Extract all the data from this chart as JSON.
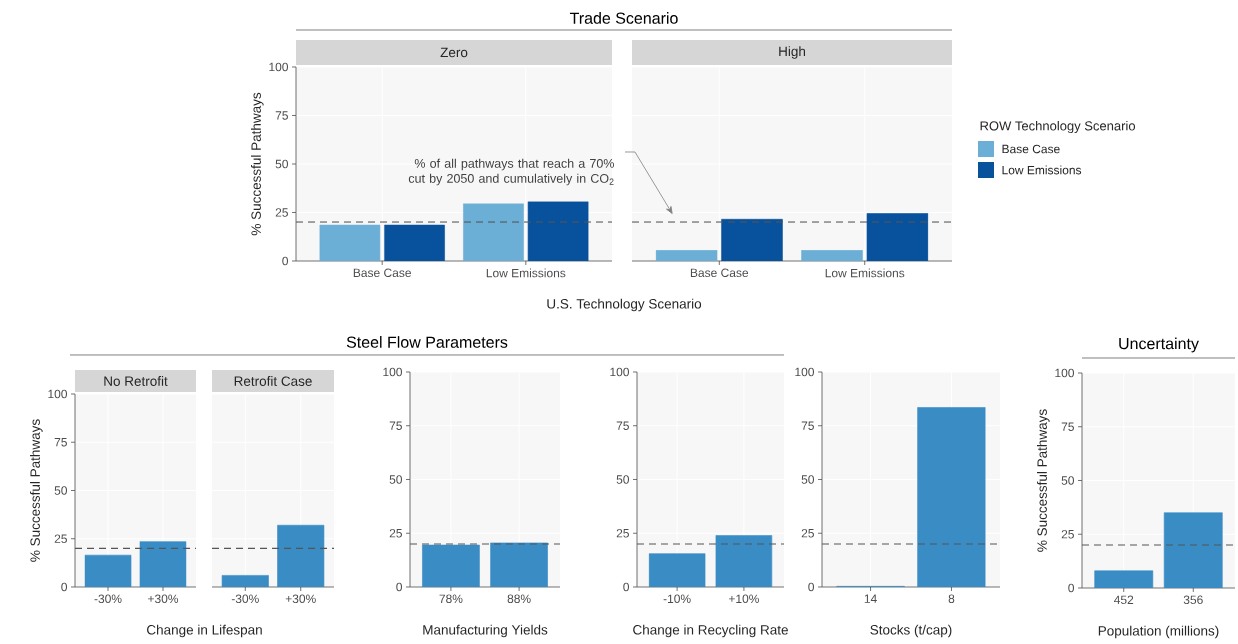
{
  "chart_data": [
    {
      "type": "bar",
      "title": "Zero",
      "annotations": [
        "Trade Scenario"
      ],
      "categories": [
        "Base Case",
        "Low Emissions"
      ],
      "series": [
        {
          "color": "#6baed6",
          "values": [
            18.5,
            29.5
          ]
        },
        {
          "color": "#08519c",
          "values": [
            18.5,
            30.5
          ]
        }
      ],
      "xlabel": "U.S. Technology Scenario",
      "ylabel": "% Successful Pathways",
      "ylim": [
        0,
        100
      ],
      "yticks": [
        0,
        25,
        50,
        75,
        100
      ],
      "grid": true,
      "ref_lines": [
        {
          "axis": "y",
          "value": 20,
          "color": "#555555",
          "line_style": "dashed"
        }
      ]
    },
    {
      "type": "bar",
      "title": "High",
      "categories": [
        "Base Case",
        "Low Emissions"
      ],
      "series": [
        {
          "name": "Base Case",
          "color": "#6baed6",
          "values": [
            5.5,
            5.5
          ]
        },
        {
          "name": "Low Emissions",
          "color": "#08519c",
          "values": [
            21.5,
            24.5
          ]
        }
      ],
      "legend": "right",
      "legend_title": "ROW Technology Scenario",
      "annotations": [
        "% of all pathways that reach a 70% cut by 2050 and cumulatively in CO$_{2}$"
      ],
      "ylim": [
        0,
        100
      ],
      "yticks": [
        0,
        25,
        50,
        75,
        100
      ],
      "tick_labels": "x",
      "grid": true,
      "ref_lines": [
        {
          "axis": "y",
          "value": 20,
          "color": "#555555",
          "line_style": "dashed"
        }
      ]
    },
    {
      "type": "bar",
      "title": "No Retrofit",
      "annotations": [
        "Steel Flow Parameters"
      ],
      "categories": [
        "-30%",
        "+30%"
      ],
      "values": [
        16.5,
        23.5
      ],
      "color": "#3a8cc4",
      "xlabel": "Change in Lifespan",
      "ylabel": "% Successful Pathways",
      "ylim": [
        0,
        100
      ],
      "yticks": [
        0,
        25,
        50,
        75,
        100
      ],
      "grid": true,
      "ref_lines": [
        {
          "axis": "y",
          "value": 20,
          "color": "#555555",
          "line_style": "dashed"
        }
      ]
    },
    {
      "type": "bar",
      "title": "Retrofit Case",
      "categories": [
        "-30%",
        "+30%"
      ],
      "values": [
        6,
        32
      ],
      "color": "#3a8cc4",
      "ylim": [
        0,
        100
      ],
      "yticks": [
        0,
        25,
        50,
        75,
        100
      ],
      "tick_labels": "x",
      "grid": true,
      "ref_lines": [
        {
          "axis": "y",
          "value": 20,
          "color": "#555555",
          "line_style": "dashed"
        }
      ]
    },
    {
      "type": "bar",
      "categories": [
        "78%",
        "88%"
      ],
      "values": [
        19.5,
        20.5
      ],
      "color": "#3a8cc4",
      "xlabel": "Manufacturing Yields",
      "ylim": [
        0,
        100
      ],
      "yticks": [
        0,
        25,
        50,
        75,
        100
      ],
      "grid": true,
      "ref_lines": [
        {
          "axis": "y",
          "value": 20,
          "color": "#555555",
          "line_style": "dashed"
        }
      ]
    },
    {
      "type": "bar",
      "categories": [
        "-10%",
        "+10%"
      ],
      "values": [
        15.5,
        24
      ],
      "color": "#3a8cc4",
      "xlabel": "Change in Recycling Rate",
      "ylim": [
        0,
        100
      ],
      "yticks": [
        0,
        25,
        50,
        75,
        100
      ],
      "grid": true,
      "ref_lines": [
        {
          "axis": "y",
          "value": 20,
          "color": "#555555",
          "line_style": "dashed"
        }
      ]
    },
    {
      "type": "bar",
      "categories": [
        "14",
        "8"
      ],
      "values": [
        0.3,
        83.5
      ],
      "color": "#3a8cc4",
      "xlabel": "Stocks (t/cap)",
      "ylim": [
        0,
        100
      ],
      "yticks": [
        0,
        25,
        50,
        75,
        100
      ],
      "grid": true,
      "ref_lines": [
        {
          "axis": "y",
          "value": 20,
          "color": "#555555",
          "line_style": "dashed"
        }
      ]
    },
    {
      "type": "bar",
      "title": "Uncertainty",
      "categories": [
        "452",
        "356"
      ],
      "values": [
        8,
        35
      ],
      "color": "#3a8cc4",
      "xlabel": "Population (millions)",
      "ylabel": "% Successful Pathways",
      "ylim": [
        0,
        100
      ],
      "yticks": [
        0,
        25,
        50,
        75,
        100
      ],
      "grid": true,
      "ref_lines": [
        {
          "axis": "y",
          "value": 20,
          "color": "#555555",
          "line_style": "dashed"
        }
      ]
    }
  ]
}
